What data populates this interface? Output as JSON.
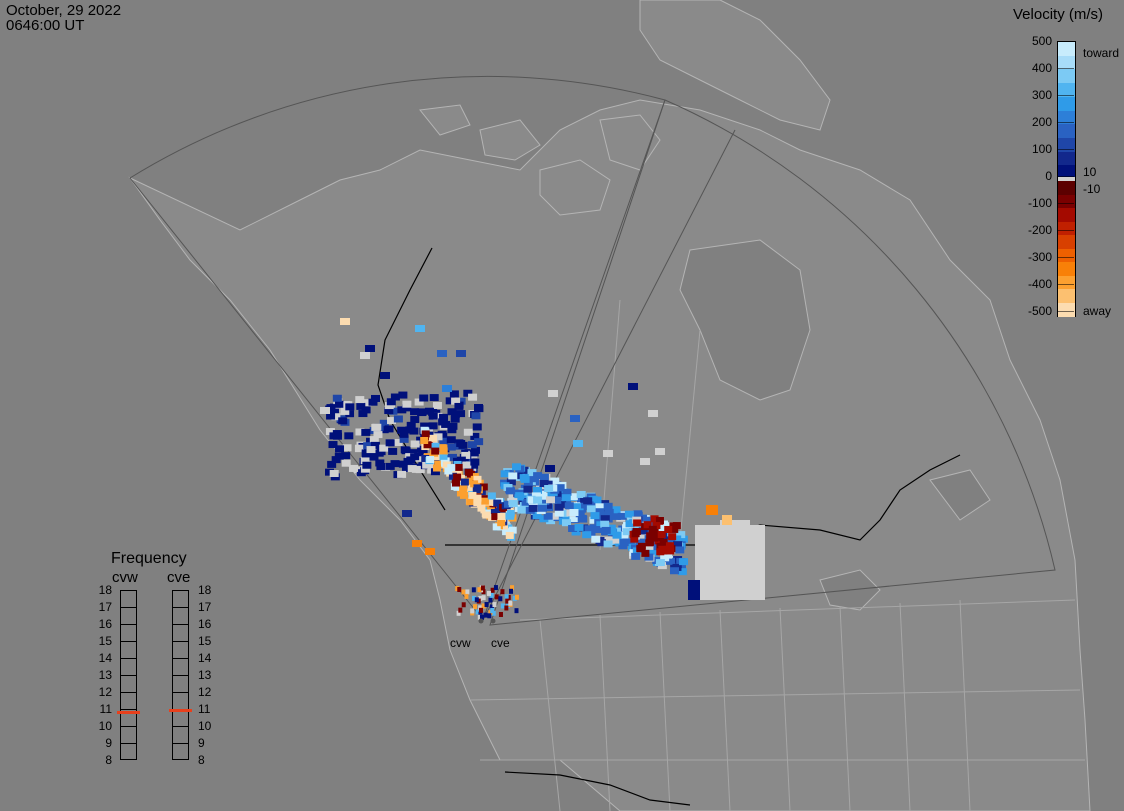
{
  "header": {
    "date": "October, 29 2022",
    "time": "0646:00 UT"
  },
  "colorbar": {
    "title": "Velocity (m/s)",
    "ticks": [
      "500",
      "400",
      "300",
      "200",
      "100",
      "0",
      "-100",
      "-200",
      "-300",
      "-400",
      "-500"
    ],
    "ticks_values": [
      500,
      400,
      300,
      200,
      100,
      0,
      -100,
      -200,
      -300,
      -400,
      -500
    ],
    "side_labels": {
      "toward": "toward",
      "away": "away",
      "pos_thresh": "10",
      "neg_thresh": "-10"
    },
    "colors_toward": [
      "#c8ecfc",
      "#a8dcf8",
      "#7ccaf4",
      "#50b4f0",
      "#2f9be8",
      "#2d7fd8",
      "#2a62c2",
      "#1f46a8",
      "#12288c",
      "#00107a"
    ],
    "colors_away": [
      "#5c0000",
      "#7a0000",
      "#a40a00",
      "#c02000",
      "#d84000",
      "#ee6000",
      "#f88008",
      "#fca030",
      "#fcc070",
      "#fcdcb0"
    ],
    "ground_scatter_color": "#d0d0d0"
  },
  "frequency": {
    "title": "Frequency",
    "radars": [
      "cvw",
      "cve"
    ],
    "scale_labels": [
      "18",
      "17",
      "16",
      "15",
      "14",
      "13",
      "12",
      "11",
      "10",
      "9",
      "8"
    ],
    "scale_min": 8,
    "scale_max": 18,
    "values_mhz": [
      10.8,
      10.9
    ],
    "marker_color": "#e8401c"
  },
  "radar_sites": {
    "west_label": "cvw",
    "east_label": "cve"
  },
  "map": {
    "land_color": "#8a8a8a",
    "coast_color": "#b4b4b4",
    "border_color": "#000000",
    "fov_color": "#555555",
    "background": "#808080"
  }
}
